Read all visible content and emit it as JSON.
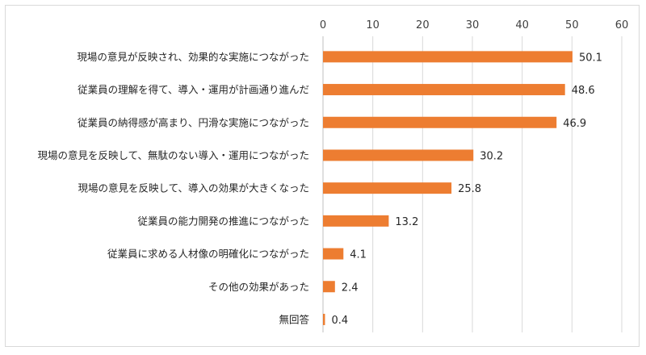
{
  "chart_data": {
    "type": "bar",
    "orientation": "horizontal",
    "title": "",
    "xlabel": "",
    "ylabel": "",
    "xlim": [
      0,
      60
    ],
    "ticks": [
      "0",
      "10",
      "20",
      "30",
      "40",
      "50",
      "60"
    ],
    "tick_values": [
      0,
      10,
      20,
      30,
      40,
      50,
      60
    ],
    "axis_position": "top",
    "grid": true,
    "legend": "none",
    "bar_color": "#ed7d31",
    "grid_color": "#d9d9d9",
    "categories": [
      "現場の意見が反映され、効果的な実施につながった",
      "従業員の理解を得て、導入・運用が計画通り進んだ",
      "従業員の納得感が高まり、円滑な実施につながった",
      "現場の意見を反映して、無駄のない導入・運用につながった",
      "現場の意見を反映して、導入の効果が大きくなった",
      "従業員の能力開発の推進につながった",
      "従業員に求める人材像の明確化につながった",
      "その他の効果があった",
      "無回答"
    ],
    "values": [
      50.1,
      48.6,
      46.9,
      30.2,
      25.8,
      13.2,
      4.1,
      2.4,
      0.4
    ],
    "value_labels": [
      "50.1",
      "48.6",
      "46.9",
      "30.2",
      "25.8",
      "13.2",
      "4.1",
      "2.4",
      "0.4"
    ]
  }
}
